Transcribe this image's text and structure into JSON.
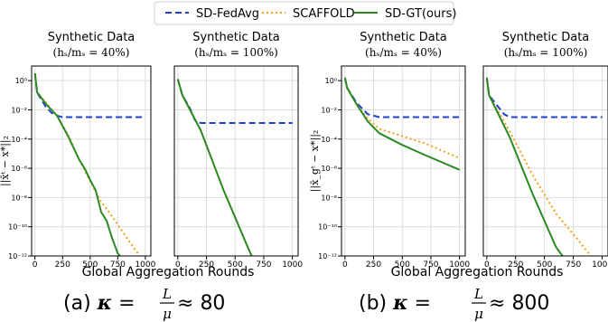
{
  "legend": [
    {
      "label": "SD-FedAvg",
      "color": "#1f3fd6",
      "style": "dashed"
    },
    {
      "label": "SCAFFOLD",
      "color": "#f4a01b",
      "style": "dotted"
    },
    {
      "label": "SD-GT(ours)",
      "color": "#2a8a22",
      "style": "solid"
    }
  ],
  "shared_xlabels": [
    "Global Aggregation Rounds",
    "Global Aggregation Rounds"
  ],
  "captions": [
    {
      "prefix": "(a) ",
      "kappa": "κ",
      "eq": " = ",
      "num": "L",
      "den": "μ",
      "approx": " ≈ ",
      "value": "80"
    },
    {
      "prefix": "(b) ",
      "kappa": "κ",
      "eq": " = ",
      "num": "L",
      "den": "μ",
      "approx": " ≈ ",
      "value": "800"
    }
  ],
  "chart_data": [
    {
      "type": "line",
      "title": "Synthetic Data",
      "subtitle_pct": "40%",
      "ylabel": "||x̄ᵗ − x*||₂",
      "xlim": [
        -30,
        1050
      ],
      "ylim_log10": [
        -12,
        1
      ],
      "xticks": [
        0,
        250,
        500,
        750,
        1000
      ],
      "yticks": [
        "10^0",
        "10^-2",
        "10^-4",
        "10^-6",
        "10^-8",
        "10^-10",
        "10^-12"
      ],
      "grid": true,
      "series": [
        {
          "name": "SD-FedAvg",
          "x": [
            0,
            20,
            50,
            100,
            150,
            200,
            250,
            300,
            1000
          ],
          "log10y": [
            0.5,
            -0.8,
            -1.2,
            -1.8,
            -2.2,
            -2.4,
            -2.5,
            -2.5,
            -2.5
          ]
        },
        {
          "name": "SCAFFOLD",
          "x": [
            0,
            20,
            100,
            200,
            300,
            400,
            500,
            600,
            700,
            800,
            900,
            1000
          ],
          "log10y": [
            0.5,
            -0.8,
            -1.5,
            -2.4,
            -3.7,
            -5.4,
            -6.9,
            -8.3,
            -9.3,
            -10.4,
            -11.5,
            -12.5
          ]
        },
        {
          "name": "SD-GT(ours)",
          "x": [
            0,
            20,
            100,
            200,
            300,
            400,
            450,
            500,
            550,
            600,
            650,
            700,
            750,
            800
          ],
          "log10y": [
            0.5,
            -0.8,
            -1.6,
            -2.4,
            -3.8,
            -5.4,
            -6.0,
            -6.8,
            -7.5,
            -9.0,
            -9.6,
            -10.8,
            -11.8,
            -12.3
          ]
        }
      ]
    },
    {
      "type": "line",
      "title": "Synthetic Data",
      "subtitle_pct": "100%",
      "ylabel": "",
      "xlim": [
        -30,
        1050
      ],
      "ylim_log10": [
        -12,
        1
      ],
      "xticks": [
        0,
        250,
        500,
        750,
        1000
      ],
      "yticks": [],
      "grid": true,
      "series": [
        {
          "name": "SD-FedAvg",
          "x": [
            0,
            40,
            100,
            150,
            200,
            1000
          ],
          "log10y": [
            0.1,
            -1.0,
            -1.8,
            -2.7,
            -2.9,
            -2.9
          ]
        },
        {
          "name": "SCAFFOLD",
          "x": [
            0,
            40,
            200,
            400,
            600,
            700
          ],
          "log10y": [
            0.1,
            -1.0,
            -3.4,
            -7.5,
            -11.2,
            -13
          ]
        },
        {
          "name": "SD-GT(ours)",
          "x": [
            0,
            40,
            200,
            400,
            600,
            700
          ],
          "log10y": [
            0.1,
            -1.0,
            -3.4,
            -7.5,
            -11.2,
            -13
          ]
        }
      ]
    },
    {
      "type": "line",
      "title": "Synthetic Data",
      "subtitle_pct": "40%",
      "ylabel": "||x̄_gᵗ − x*||₂",
      "xlim": [
        -30,
        1050
      ],
      "ylim_log10": [
        -12,
        1
      ],
      "xticks": [
        0,
        250,
        500,
        750,
        1000
      ],
      "yticks": [
        "10^0",
        "10^-2",
        "10^-4",
        "10^-6",
        "10^-8",
        "10^-10",
        "10^-12"
      ],
      "grid": true,
      "series": [
        {
          "name": "SD-FedAvg",
          "x": [
            0,
            20,
            100,
            200,
            300,
            1000
          ],
          "log10y": [
            0.2,
            -0.5,
            -1.5,
            -2.3,
            -2.5,
            -2.5
          ]
        },
        {
          "name": "SCAFFOLD",
          "x": [
            0,
            20,
            100,
            200,
            300,
            500,
            700,
            1000
          ],
          "log10y": [
            0.2,
            -0.5,
            -1.6,
            -2.6,
            -3.3,
            -3.8,
            -4.3,
            -5.3
          ]
        },
        {
          "name": "SD-GT(ours)",
          "x": [
            0,
            20,
            100,
            200,
            300,
            500,
            700,
            1000
          ],
          "log10y": [
            0.2,
            -0.5,
            -1.6,
            -2.8,
            -3.6,
            -4.4,
            -5.1,
            -6.1
          ]
        }
      ]
    },
    {
      "type": "line",
      "title": "Synthetic Data",
      "subtitle_pct": "100%",
      "ylabel": "",
      "xlim": [
        -30,
        1050
      ],
      "ylim_log10": [
        -12,
        1
      ],
      "xticks": [
        0,
        250,
        500,
        750,
        1000
      ],
      "yticks": [],
      "grid": true,
      "series": [
        {
          "name": "SD-FedAvg",
          "x": [
            0,
            20,
            100,
            150,
            200,
            1000
          ],
          "log10y": [
            0.2,
            -1.0,
            -1.8,
            -2.3,
            -2.5,
            -2.5
          ]
        },
        {
          "name": "SCAFFOLD",
          "x": [
            0,
            20,
            200,
            400,
            600,
            800,
            1000
          ],
          "log10y": [
            0.2,
            -1.0,
            -3.5,
            -6.5,
            -9.1,
            -11.0,
            -13
          ]
        },
        {
          "name": "SD-GT(ours)",
          "x": [
            0,
            20,
            200,
            400,
            600,
            750
          ],
          "log10y": [
            0.2,
            -1.0,
            -3.9,
            -7.8,
            -11.4,
            -13
          ]
        }
      ]
    }
  ]
}
